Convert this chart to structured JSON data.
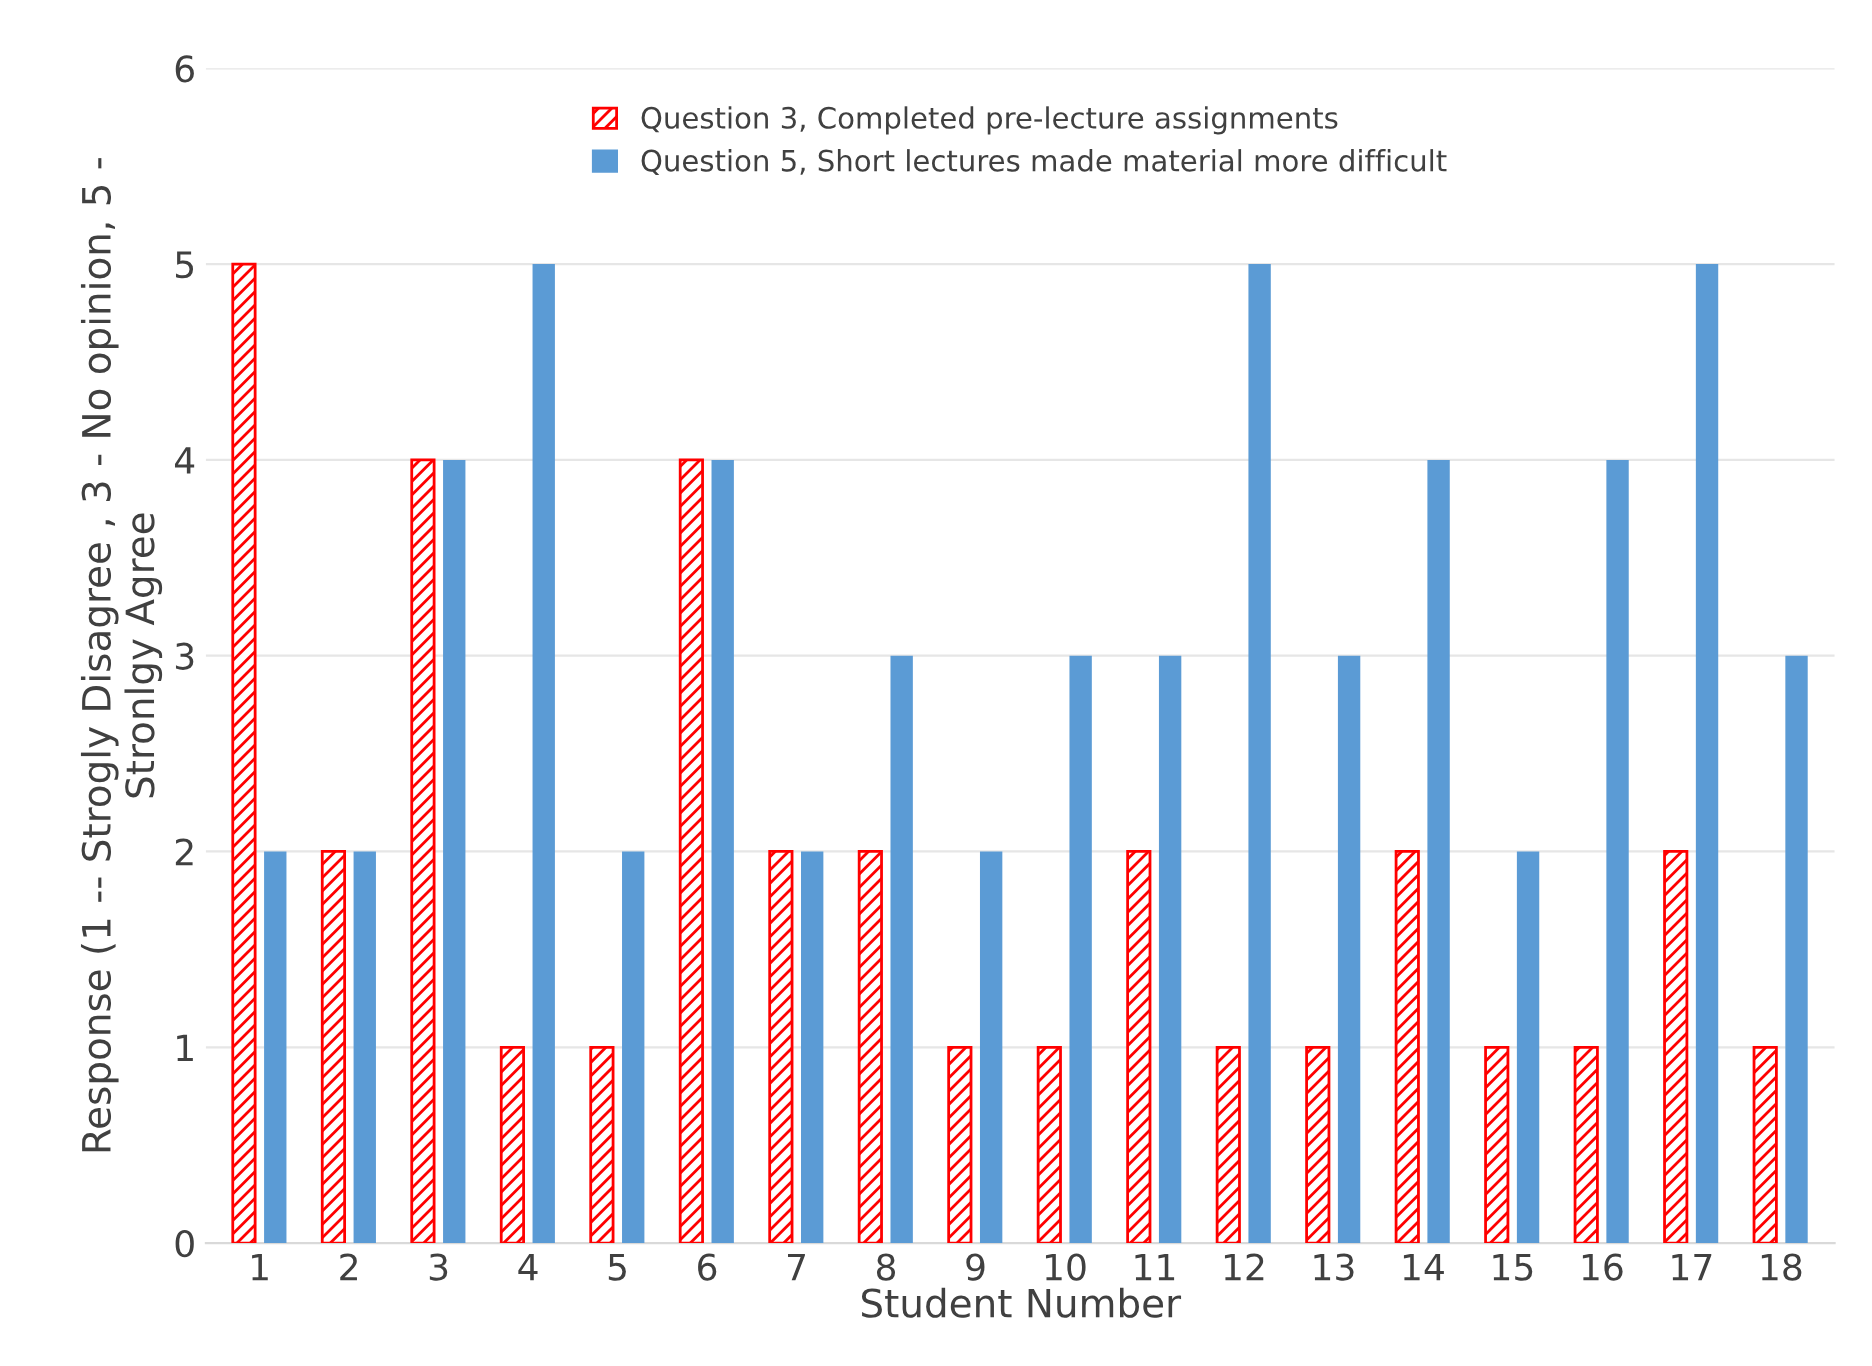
{
  "chart_data": {
    "type": "bar",
    "xlabel": "Student Number",
    "ylabel": "Response (1 -- Strogly Disagree , 3 - No opinion, 5 -\nStronlgy Agree",
    "categories": [
      "1",
      "2",
      "3",
      "4",
      "5",
      "6",
      "7",
      "8",
      "9",
      "10",
      "11",
      "12",
      "13",
      "14",
      "15",
      "16",
      "17",
      "18"
    ],
    "series": [
      {
        "name": "Question 3, Completed pre-lecture assignments",
        "color": "#ff0000",
        "values": [
          5,
          2,
          4,
          1,
          1,
          4,
          2,
          2,
          1,
          1,
          2,
          1,
          1,
          2,
          1,
          1,
          2,
          1
        ]
      },
      {
        "name": "Question 5, Short lectures made material more difficult",
        "color": "#5b9bd5",
        "values": [
          2,
          2,
          4,
          5,
          2,
          4,
          2,
          3,
          2,
          3,
          3,
          5,
          3,
          4,
          2,
          4,
          5,
          3
        ]
      }
    ],
    "ylim": [
      0,
      6
    ],
    "yticks": [
      0,
      1,
      2,
      3,
      4,
      5,
      6
    ],
    "grid": "y",
    "legend": "top"
  }
}
